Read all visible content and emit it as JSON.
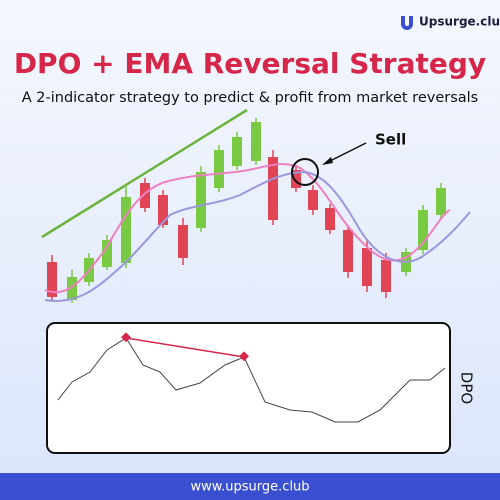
{
  "header": {
    "brand": "Upsurge.club",
    "title": "DPO + EMA Reversal Strategy",
    "subtitle": "A 2-indicator strategy to predict & profit from market reversals"
  },
  "price_panel": {
    "annotation": "Sell"
  },
  "indicator_panel": {
    "label": "DPO"
  },
  "footer": {
    "url": "www.upsurge.club"
  }
}
